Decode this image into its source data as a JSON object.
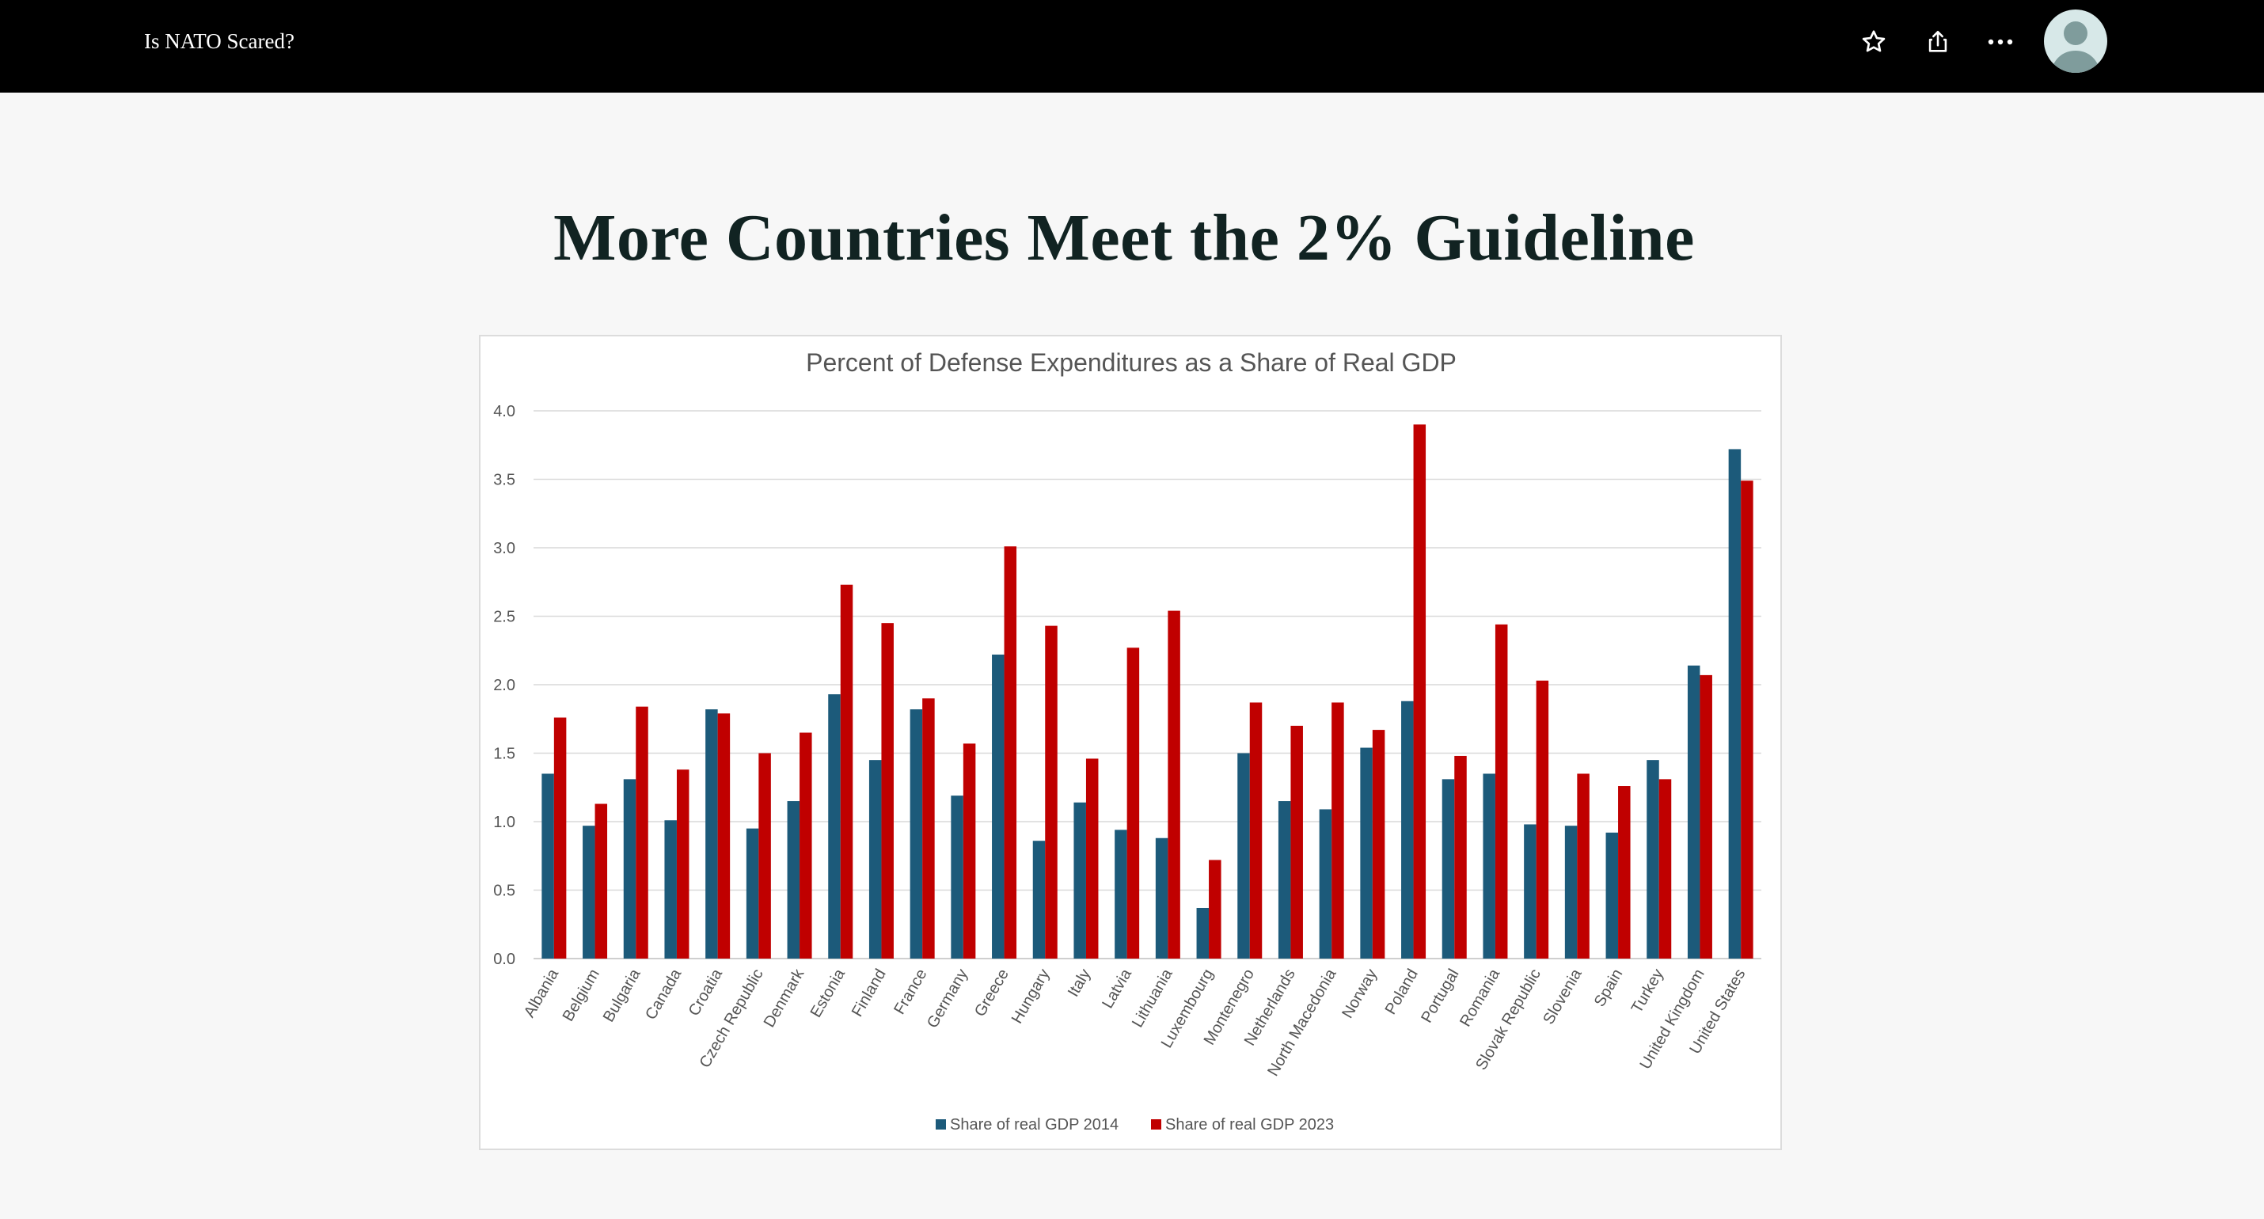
{
  "header": {
    "title": "Is NATO Scared?",
    "icons": [
      "star-icon",
      "share-icon",
      "more-icon",
      "user-avatar-icon"
    ]
  },
  "main": {
    "title": "More Countries Meet the 2% Guideline"
  },
  "colors": {
    "series_2014": "#1c5a7a",
    "series_2023": "#c00000",
    "topbar": "#000000",
    "page_background": "#f7f7f7"
  },
  "chart_data": {
    "type": "bar",
    "title": "Percent of Defense Expenditures as a Share of Real GDP",
    "xlabel": "",
    "ylabel": "",
    "ylim": [
      0,
      4.0
    ],
    "yticks": [
      "0.0",
      "0.5",
      "1.0",
      "1.5",
      "2.0",
      "2.5",
      "3.0",
      "3.5",
      "4.0"
    ],
    "grid": true,
    "legend_position": "bottom",
    "categories": [
      "Albania",
      "Belgium",
      "Bulgaria",
      "Canada",
      "Croatia",
      "Czech Republic",
      "Denmark",
      "Estonia",
      "Finland",
      "France",
      "Germany",
      "Greece",
      "Hungary",
      "Italy",
      "Latvia",
      "Lithuania",
      "Luxembourg",
      "Montenegro",
      "Netherlands",
      "North Macedonia",
      "Norway",
      "Poland",
      "Portugal",
      "Romania",
      "Slovak Republic",
      "Slovenia",
      "Spain",
      "Turkey",
      "United Kingdom",
      "United States"
    ],
    "series": [
      {
        "name": "Share of real GDP 2014",
        "color": "#1c5a7a",
        "values": [
          1.35,
          0.97,
          1.31,
          1.01,
          1.82,
          0.95,
          1.15,
          1.93,
          1.45,
          1.82,
          1.19,
          2.22,
          0.86,
          1.14,
          0.94,
          0.88,
          0.37,
          1.5,
          1.15,
          1.09,
          1.54,
          1.88,
          1.31,
          1.35,
          0.98,
          0.97,
          0.92,
          1.45,
          2.14,
          3.72
        ]
      },
      {
        "name": "Share of real GDP 2023",
        "color": "#c00000",
        "values": [
          1.76,
          1.13,
          1.84,
          1.38,
          1.79,
          1.5,
          1.65,
          2.73,
          2.45,
          1.9,
          1.57,
          3.01,
          2.43,
          1.46,
          2.27,
          2.54,
          0.72,
          1.87,
          1.7,
          1.87,
          1.67,
          3.9,
          1.48,
          2.44,
          2.03,
          1.35,
          1.26,
          1.31,
          2.07,
          3.49
        ]
      }
    ]
  }
}
